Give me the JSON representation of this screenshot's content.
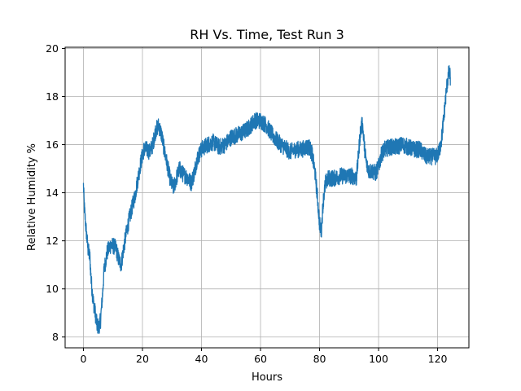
{
  "chart_data": {
    "type": "line",
    "title": "RH Vs. Time, Test Run 3",
    "xlabel": "Hours",
    "ylabel": "Relative Humidity %",
    "xlim": [
      -6.2,
      130.6
    ],
    "ylim": [
      7.55,
      20.05
    ],
    "xticks": [
      0,
      20,
      40,
      60,
      80,
      100,
      120
    ],
    "yticks": [
      8,
      10,
      12,
      14,
      16,
      18,
      20
    ],
    "grid": true,
    "series": [
      {
        "color": "#1f77b4",
        "noise_band": 0.35,
        "x": [
          0,
          0.3,
          0.8,
          1.5,
          2.2,
          2.6,
          3.2,
          4.0,
          4.6,
          5.2,
          5.8,
          6.5,
          7.0,
          8.0,
          9.0,
          10.0,
          11.0,
          12.0,
          12.8,
          13.5,
          14.5,
          15.5,
          16.5,
          17.5,
          18.5,
          19.5,
          20.5,
          21.5,
          22.5,
          23.5,
          24.5,
          25.5,
          26.5,
          27.5,
          28.5,
          29.5,
          30.5,
          31.5,
          32.5,
          33.5,
          34.5,
          35.5,
          36.5,
          37.5,
          38.5,
          40.0,
          42.0,
          44.0,
          46.0,
          48.0,
          50.0,
          52.0,
          54.0,
          56.0,
          58.0,
          59.0,
          60.0,
          61.0,
          62.0,
          64.0,
          66.0,
          68.0,
          70.0,
          72.0,
          74.0,
          75.5,
          76.5,
          77.5,
          78.5,
          79.3,
          80.0,
          80.6,
          81.2,
          82.0,
          83.0,
          85.0,
          87.0,
          89.0,
          91.0,
          92.5,
          93.2,
          93.8,
          94.5,
          95.3,
          96.0,
          97.0,
          98.0,
          99.0,
          100.0,
          101.0,
          102.0,
          104.0,
          106.0,
          108.0,
          110.0,
          112.0,
          114.0,
          116.0,
          118.0,
          119.5,
          120.5,
          121.3,
          122.0,
          122.6,
          123.2,
          123.8,
          124.3
        ],
        "y": [
          14.3,
          13.4,
          12.6,
          11.7,
          11.3,
          10.4,
          9.6,
          9.0,
          8.5,
          8.4,
          8.7,
          9.8,
          10.8,
          11.5,
          11.8,
          11.8,
          11.7,
          11.2,
          11.0,
          11.6,
          12.3,
          12.9,
          13.4,
          13.9,
          14.6,
          15.3,
          15.8,
          15.8,
          15.7,
          16.0,
          16.6,
          16.8,
          16.4,
          15.7,
          15.1,
          14.5,
          14.2,
          14.6,
          15.0,
          14.8,
          14.7,
          14.6,
          14.4,
          14.8,
          15.4,
          15.8,
          16.0,
          16.1,
          15.9,
          16.0,
          16.3,
          16.4,
          16.5,
          16.7,
          17.0,
          17.0,
          17.0,
          16.9,
          16.8,
          16.4,
          16.1,
          15.9,
          15.7,
          15.8,
          15.8,
          15.9,
          15.9,
          15.6,
          14.8,
          13.8,
          12.7,
          12.4,
          13.6,
          14.4,
          14.6,
          14.6,
          14.7,
          14.7,
          14.7,
          14.6,
          15.6,
          16.5,
          16.9,
          15.8,
          15.1,
          14.9,
          14.9,
          14.8,
          15.1,
          15.6,
          15.8,
          15.9,
          15.9,
          16.0,
          15.9,
          15.8,
          15.8,
          15.5,
          15.5,
          15.5,
          15.7,
          16.2,
          17.0,
          17.8,
          18.5,
          19.0,
          18.8
        ]
      }
    ]
  }
}
